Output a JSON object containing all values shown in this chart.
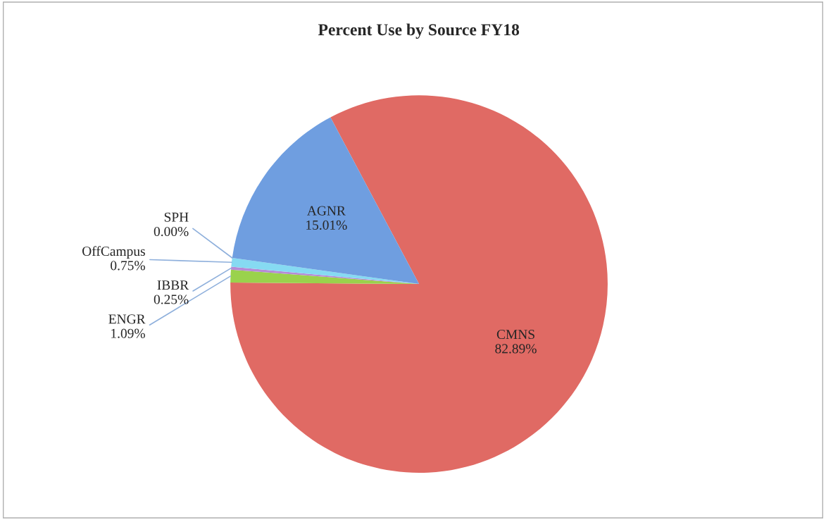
{
  "chart_data": {
    "type": "pie",
    "title": "Percent Use by Source FY18",
    "categories": [
      "CMNS",
      "ENGR",
      "IBBR",
      "OffCampus",
      "SPH",
      "AGNR"
    ],
    "values": [
      82.89,
      1.09,
      0.25,
      0.75,
      0.0,
      15.01
    ],
    "colors": [
      "#e06a64",
      "#9ad24c",
      "#b68ad6",
      "#86daf2",
      "#7eb0e8",
      "#6f9ee0"
    ],
    "value_labels": [
      "82.89%",
      "1.09%",
      "0.25%",
      "0.75%",
      "0.00%",
      "15.01%"
    ]
  }
}
